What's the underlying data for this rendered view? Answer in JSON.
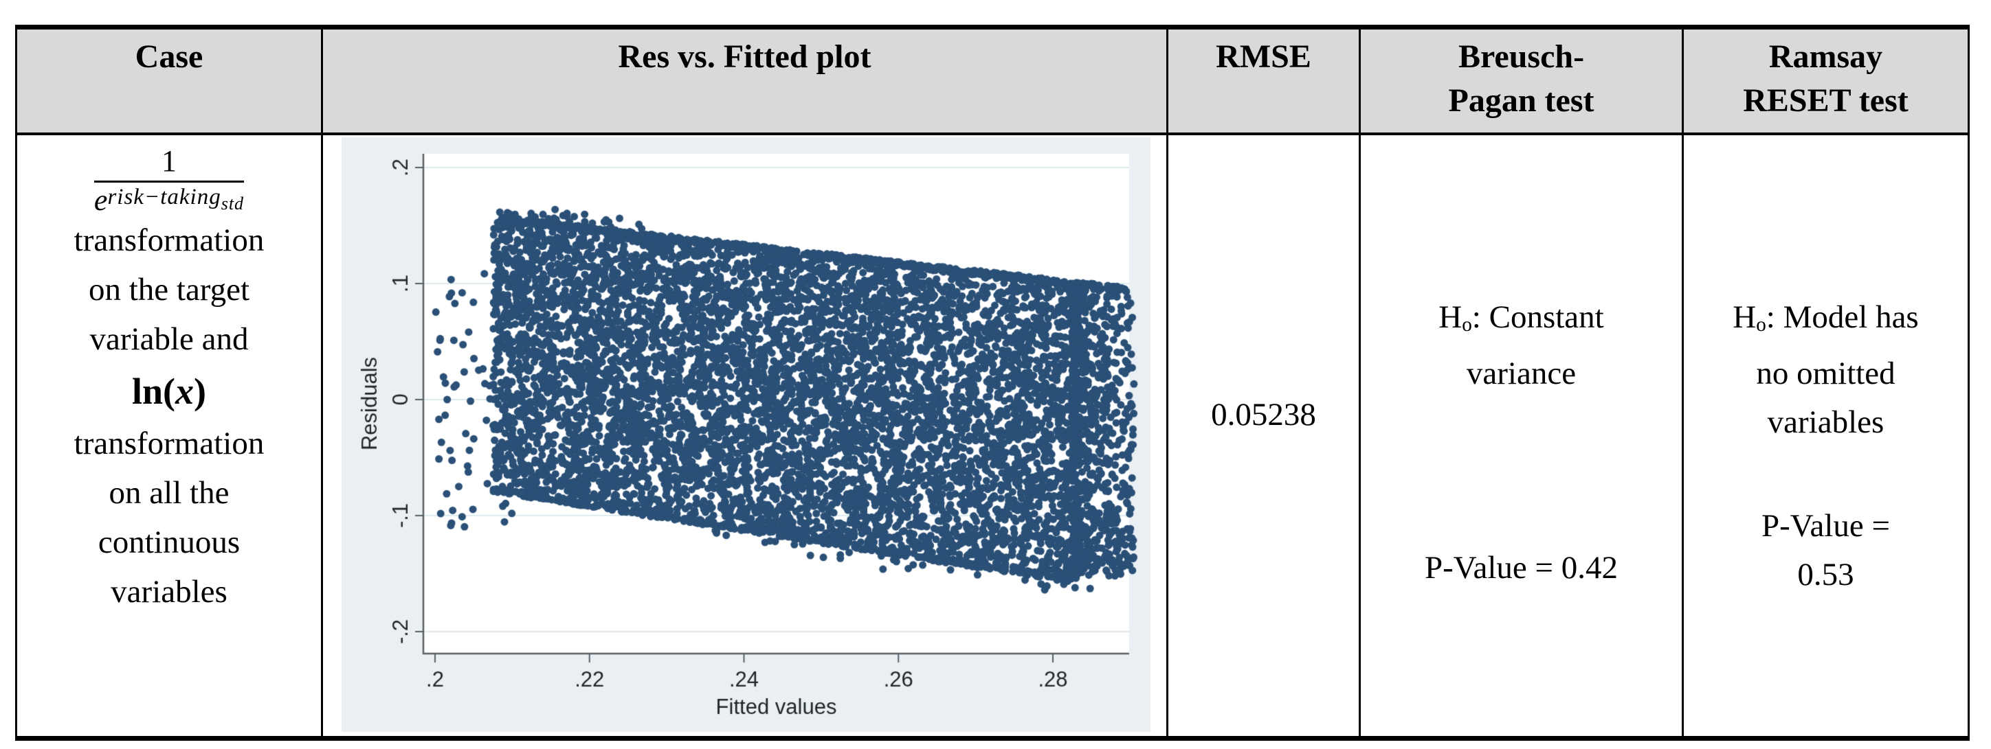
{
  "header": {
    "case": "Case",
    "plot": "Res vs. Fitted plot",
    "rmse": "RMSE",
    "bp_line1": "Breusch-",
    "bp_line2": "Pagan test",
    "ramsay_line1": "Ramsay",
    "ramsay_line2": "RESET test"
  },
  "row": {
    "case": {
      "frac_numerator": "1",
      "frac_base": "e",
      "frac_sup": "risk−taking",
      "frac_sub": "std",
      "lines_a": [
        "transformation",
        "on the target",
        "variable and"
      ],
      "ln_open": "ln(",
      "ln_var": "x",
      "ln_close": ")",
      "lines_b": [
        "transformation",
        "on all the",
        "continuous",
        "variables"
      ]
    },
    "rmse": "0.05238",
    "breusch_pagan": {
      "h_base": "H",
      "h_sub": "o",
      "h_rest": ": Constant",
      "h_line2": "variance",
      "p_value": "P-Value = 0.42"
    },
    "ramsay_reset": {
      "h_base": "H",
      "h_sub": "o",
      "h_rest": ": Model has",
      "h_line2": "no omitted",
      "h_line3": "variables",
      "p_line1": "P-Value =",
      "p_line2": "0.53"
    }
  },
  "chart_data": {
    "type": "scatter",
    "title": "",
    "xlabel": "Fitted values",
    "ylabel": "Residuals",
    "x_ticks": [
      ".2",
      ".22",
      ".24",
      ".26",
      ".28"
    ],
    "x_tick_values": [
      0.2,
      0.22,
      0.24,
      0.26,
      0.28
    ],
    "y_ticks": [
      ".2",
      ".1",
      "0",
      "-.1",
      "-.2"
    ],
    "y_tick_values": [
      0.2,
      0.1,
      0,
      -0.1,
      -0.2
    ],
    "xlim": [
      0.1985,
      0.2915
    ],
    "ylim": [
      -0.218,
      0.212
    ],
    "grid": "horizontal",
    "legend": "none",
    "marker_color": "#2b5077",
    "bg_color": "#e9eff3",
    "plot_area_color": "#ffffff",
    "grid_color": "#dfe9ee",
    "axis_color": "#586066",
    "label_color": "#1f2427",
    "marker_radius": 5.5,
    "seed": 42,
    "n_points": 7000,
    "band": {
      "x_min": 0.2075,
      "x_max": 0.2835,
      "top_ref_x": 0.2077,
      "top_intercept": 0.158,
      "top_slope": -0.75,
      "bottom_ref_x": 0.205,
      "bottom_intercept": -0.077,
      "bottom_slope": -1.04
    },
    "description": "Dense tilted band of residuals (approx 0.16 down to -0.15) over fitted values 0.2 to 0.29, sloping downward to the right, with sparse outlier points along the left, top-left, right and bottom edges; no visible pattern centered near residual 0."
  }
}
